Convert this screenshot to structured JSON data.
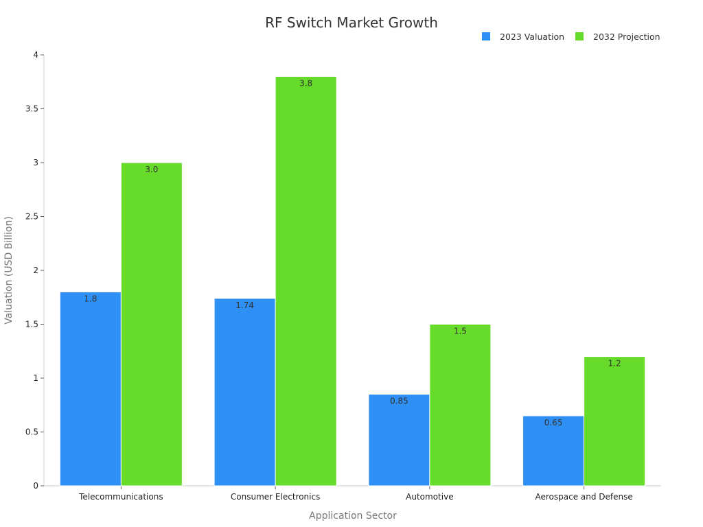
{
  "chart_data": {
    "type": "bar",
    "title": "RF Switch Market Growth",
    "xlabel": "Application Sector",
    "ylabel": "Valuation (USD Billion)",
    "categories": [
      "Telecommunications",
      "Consumer Electronics",
      "Automotive",
      "Aerospace and Defense"
    ],
    "series": [
      {
        "name": "2023 Valuation",
        "color": "#2e8ff5",
        "values": [
          1.8,
          1.74,
          0.85,
          0.65
        ],
        "labels": [
          "1.8",
          "1.74",
          "0.85",
          "0.65"
        ]
      },
      {
        "name": "2032 Projection",
        "color": "#66db2a",
        "values": [
          3.0,
          3.8,
          1.5,
          1.2
        ],
        "labels": [
          "3.0",
          "3.8",
          "1.5",
          "1.2"
        ]
      }
    ],
    "ylim": [
      0,
      4
    ],
    "yticks": [
      "0",
      "0.5",
      "1",
      "1.5",
      "2",
      "2.5",
      "3",
      "3.5",
      "4"
    ],
    "grid": false,
    "legend_position": "top-right"
  }
}
